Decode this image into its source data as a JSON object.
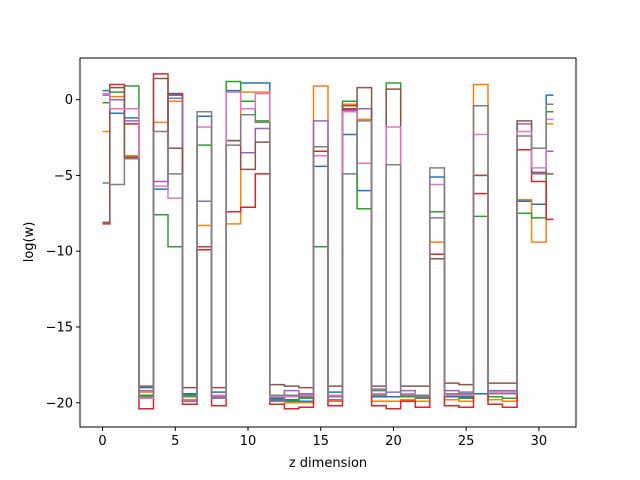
{
  "chart_data": {
    "type": "line",
    "drawstyle": "steps",
    "xlabel": "z dimension",
    "ylabel": "log(w)",
    "xlim": [
      -1.55,
      32.55
    ],
    "ylim": [
      -21.6,
      2.75
    ],
    "xticks": [
      0,
      5,
      10,
      15,
      20,
      25,
      30
    ],
    "yticks": [
      0,
      -5,
      -10,
      -15,
      -20
    ],
    "grid": false,
    "legend": "none",
    "series": [
      {
        "color": "#1f77b4",
        "values": [
          0.6,
          -0.9,
          -1.2,
          -19.0,
          -5.9,
          0.3,
          -19.4,
          -1.1,
          -19.3,
          0.6,
          1.1,
          1.1,
          -19.7,
          -19.8,
          -19.9,
          -4.4,
          -19.3,
          -2.3,
          -6.0,
          -19.6,
          -19.6,
          -19.5,
          -19.6,
          -5.1,
          -19.6,
          -19.6,
          -19.4,
          -19.4,
          -19.4,
          -6.7,
          -6.9,
          0.3
        ]
      },
      {
        "color": "#ff7f0e",
        "values": [
          -2.1,
          0.2,
          -3.7,
          -19.3,
          -1.5,
          -0.1,
          -19.8,
          -8.3,
          -19.6,
          -8.2,
          0.5,
          0.5,
          -19.9,
          -20.0,
          -20.0,
          0.9,
          -19.9,
          -0.3,
          -1.3,
          -19.9,
          -19.9,
          -19.8,
          -19.9,
          -9.4,
          -19.8,
          -19.9,
          1.0,
          -19.8,
          -19.9,
          -6.6,
          -9.4,
          -1.6
        ]
      },
      {
        "color": "#2ca02c",
        "values": [
          -0.2,
          0.5,
          0.9,
          -19.5,
          -7.6,
          -9.7,
          -19.5,
          -3.0,
          -19.5,
          1.2,
          -0.1,
          -1.4,
          -19.8,
          -19.9,
          -19.7,
          -9.7,
          -19.6,
          -0.1,
          -7.2,
          -19.2,
          1.1,
          -19.6,
          -19.7,
          -7.4,
          -19.5,
          -19.7,
          -7.7,
          -19.6,
          -19.7,
          -7.5,
          -7.8,
          -0.8
        ]
      },
      {
        "color": "#d62728",
        "values": [
          -8.2,
          1.0,
          -1.6,
          -20.4,
          1.7,
          0.4,
          -20.1,
          -9.9,
          -20.2,
          -7.4,
          -7.1,
          -4.9,
          -20.1,
          -20.4,
          -20.3,
          -3.4,
          -20.2,
          -0.6,
          -0.6,
          -20.2,
          -20.4,
          -19.9,
          -20.3,
          -10.2,
          -20.2,
          -20.3,
          -6.2,
          -20.1,
          -20.3,
          -3.3,
          -5.4,
          -7.9
        ]
      },
      {
        "color": "#9467bd",
        "values": [
          0.3,
          0.0,
          -1.4,
          -19.2,
          -5.4,
          0.1,
          -19.9,
          -6.7,
          -19.7,
          -2.7,
          -3.5,
          -1.9,
          -19.9,
          -19.2,
          -19.4,
          -1.4,
          -19.8,
          -0.7,
          -0.6,
          -19.1,
          -19.3,
          -19.2,
          -19.6,
          -7.8,
          -19.2,
          -19.3,
          -5.0,
          -19.2,
          -19.2,
          -1.6,
          -4.9,
          -3.4
        ]
      },
      {
        "color": "#8c564b",
        "values": [
          -8.1,
          0.8,
          -3.8,
          -18.9,
          1.4,
          -3.2,
          -19.0,
          -9.7,
          -19.0,
          -2.7,
          -4.6,
          -2.8,
          -18.8,
          -18.9,
          -19.0,
          -3.1,
          -18.9,
          -0.4,
          0.8,
          -18.9,
          0.7,
          -18.9,
          -18.9,
          -10.5,
          -18.7,
          -18.8,
          -5.0,
          -18.7,
          -18.7,
          -1.4,
          -4.8,
          -4.9
        ]
      },
      {
        "color": "#e377c2",
        "values": [
          0.4,
          -0.6,
          -0.6,
          -19.7,
          -5.7,
          -6.5,
          -19.6,
          -1.8,
          -19.5,
          0.5,
          -0.6,
          0.4,
          -19.6,
          -19.6,
          -19.5,
          -3.7,
          -19.5,
          -0.8,
          -4.2,
          -19.4,
          -1.8,
          -19.4,
          -19.5,
          -5.6,
          -19.5,
          -19.5,
          -2.3,
          -19.3,
          -19.3,
          -2.1,
          -4.5,
          -1.3
        ]
      },
      {
        "color": "#7f7f7f",
        "values": [
          -5.5,
          -5.6,
          -3.9,
          -19.6,
          -2.1,
          -4.9,
          -19.6,
          -0.8,
          -19.6,
          -3.0,
          -1.0,
          -1.5,
          -19.5,
          -19.5,
          -19.6,
          -3.1,
          -19.6,
          -4.9,
          -1.4,
          -19.5,
          -4.3,
          -19.5,
          -19.5,
          -4.5,
          -19.4,
          -19.4,
          -0.4,
          -19.4,
          -19.4,
          -2.4,
          -3.2,
          -0.3
        ]
      }
    ]
  }
}
